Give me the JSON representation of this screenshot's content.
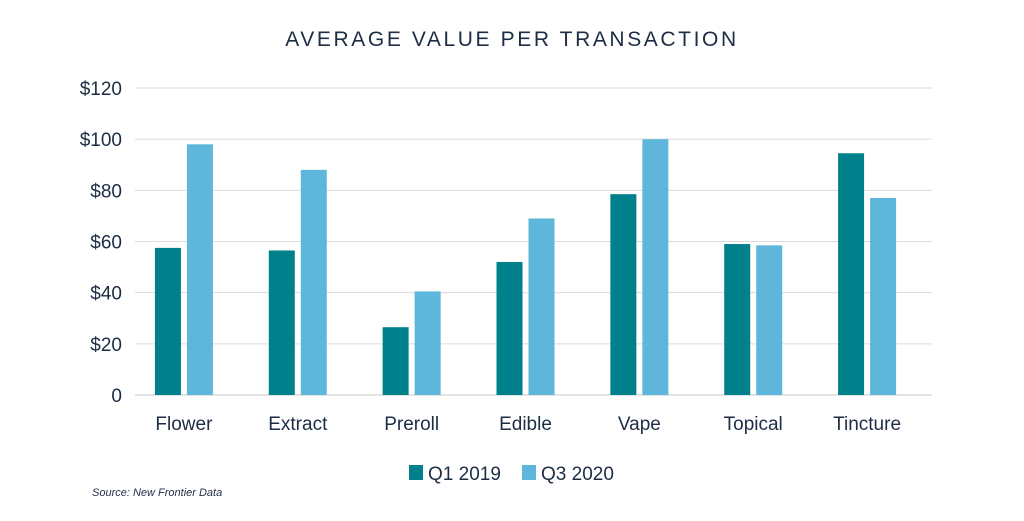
{
  "chart_data": {
    "type": "bar",
    "title": "AVERAGE VALUE PER TRANSACTION",
    "categories": [
      "Flower",
      "Extract",
      "Preroll",
      "Edible",
      "Vape",
      "Topical",
      "Tincture"
    ],
    "series": [
      {
        "name": "Q1 2019",
        "color": "#00808b",
        "values": [
          57.5,
          56.5,
          26.5,
          52,
          78.5,
          59,
          94.5
        ]
      },
      {
        "name": "Q3 2020",
        "color": "#5eb7da",
        "values": [
          98,
          88,
          40.5,
          69,
          100,
          58.5,
          77
        ]
      }
    ],
    "ylim": [
      0,
      120
    ],
    "yticks": [
      0,
      20,
      40,
      60,
      80,
      100,
      120
    ],
    "ytick_labels": [
      "0",
      "$20",
      "$40",
      "$60",
      "$80",
      "$100",
      "$120"
    ],
    "grid": true,
    "legend_position": "bottom-center",
    "source": "Source: New Frontier Data"
  }
}
